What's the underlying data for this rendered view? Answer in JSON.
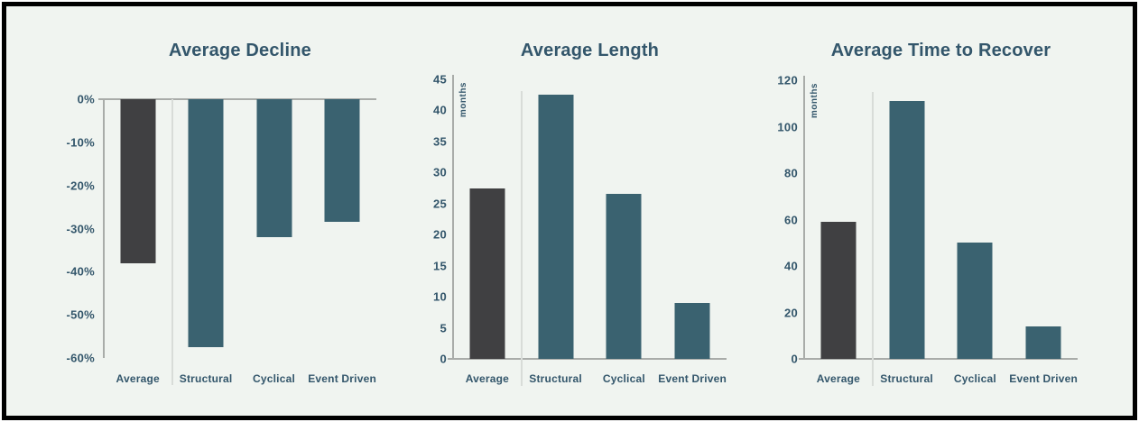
{
  "colors": {
    "page_background": "#ffffff",
    "frame_border": "#000000",
    "chart_background": "#f0f4f0",
    "text": "#33566b",
    "axis_line": "#a9aca9",
    "separator_line": "#d8dcd8",
    "bar_dark": "#404042",
    "bar_teal": "#3a6270"
  },
  "chart_data": [
    {
      "type": "bar",
      "title": "Average Decline",
      "unit": "percent",
      "unit_label": "",
      "categories": [
        "Average",
        "Structural",
        "Cyclical",
        "Event Driven"
      ],
      "values": [
        -38,
        -57.5,
        -32,
        -28.5
      ],
      "ticks": [
        "0%",
        "-10%",
        "-20%",
        "-30%",
        "-40%",
        "-50%",
        "-60%"
      ],
      "axis_range": [
        -60,
        0
      ],
      "direction": "down",
      "grid": false,
      "legend": false,
      "bar_colors": [
        "#404042",
        "#3a6270",
        "#3a6270",
        "#3a6270"
      ]
    },
    {
      "type": "bar",
      "title": "Average Length",
      "unit": "months",
      "unit_label": "months",
      "categories": [
        "Average",
        "Structural",
        "Cyclical",
        "Event Driven"
      ],
      "values": [
        27.5,
        42.5,
        26.5,
        9
      ],
      "ticks": [
        "45",
        "40",
        "35",
        "30",
        "25",
        "20",
        "15",
        "10",
        "5",
        "0"
      ],
      "axis_range": [
        0,
        45
      ],
      "direction": "up",
      "grid": false,
      "legend": false,
      "bar_colors": [
        "#404042",
        "#3a6270",
        "#3a6270",
        "#3a6270"
      ]
    },
    {
      "type": "bar",
      "title": "Average Time to Recover",
      "unit": "months",
      "unit_label": "months",
      "categories": [
        "Average",
        "Structural",
        "Cyclical",
        "Event Driven"
      ],
      "values": [
        59,
        111,
        50,
        14
      ],
      "ticks": [
        "120",
        "100",
        "80",
        "60",
        "40",
        "20",
        "0"
      ],
      "axis_range": [
        0,
        120
      ],
      "direction": "up",
      "grid": false,
      "legend": false,
      "bar_colors": [
        "#404042",
        "#3a6270",
        "#3a6270",
        "#3a6270"
      ]
    }
  ]
}
